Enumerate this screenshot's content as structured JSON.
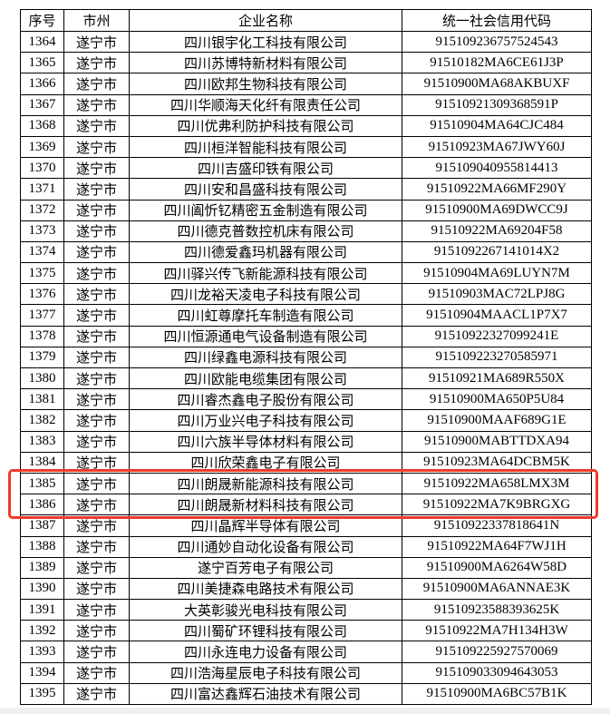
{
  "page": {
    "background_color": "#ffffff",
    "bottom_strip_color": "#eef0f1"
  },
  "highlight": {
    "color": "#f13a2b",
    "first_row_seq": "1385",
    "last_row_seq": "1386"
  },
  "table": {
    "headers": [
      "序号",
      "市州",
      "企业名称",
      "统一社会信用代码"
    ],
    "rows": [
      {
        "seq": "1364",
        "city": "遂宁市",
        "company": "四川银宇化工科技有限公司",
        "code": "915109236757524543",
        "highlight": false
      },
      {
        "seq": "1365",
        "city": "遂宁市",
        "company": "四川苏博特新材料有限公司",
        "code": "91510182MA6CE61J3P",
        "highlight": false
      },
      {
        "seq": "1366",
        "city": "遂宁市",
        "company": "四川欧邦生物科技有限公司",
        "code": "91510900MA68AKBUXF",
        "highlight": false
      },
      {
        "seq": "1367",
        "city": "遂宁市",
        "company": "四川华顺海天化纤有限责任公司",
        "code": "91510921309368591P",
        "highlight": false
      },
      {
        "seq": "1368",
        "city": "遂宁市",
        "company": "四川优弗利防护科技有限公司",
        "code": "91510904MA64CJC484",
        "highlight": false
      },
      {
        "seq": "1369",
        "city": "遂宁市",
        "company": "四川桓洋智能科技有限公司",
        "code": "91510923MA67JWY60J",
        "highlight": false
      },
      {
        "seq": "1370",
        "city": "遂宁市",
        "company": "四川吉盛印铁有限公司",
        "code": "915109040955814413",
        "highlight": false
      },
      {
        "seq": "1371",
        "city": "遂宁市",
        "company": "四川安和昌盛科技有限公司",
        "code": "91510922MA66MF290Y",
        "highlight": false
      },
      {
        "seq": "1372",
        "city": "遂宁市",
        "company": "四川阖忻钇精密五金制造有限公司",
        "code": "91510900MA69DWCC9J",
        "highlight": false
      },
      {
        "seq": "1373",
        "city": "遂宁市",
        "company": "四川德克普数控机床有限公司",
        "code": "91510922MA69204F58",
        "highlight": false
      },
      {
        "seq": "1374",
        "city": "遂宁市",
        "company": "四川德爱鑫玛机器有限公司",
        "code": "9151092267141014X2",
        "highlight": false
      },
      {
        "seq": "1375",
        "city": "遂宁市",
        "company": "四川驿兴传飞新能源科技有限公司",
        "code": "91510904MA69LUYN7M",
        "highlight": false
      },
      {
        "seq": "1376",
        "city": "遂宁市",
        "company": "四川龙裕天凌电子科技有限公司",
        "code": "91510903MAC72LPJ8G",
        "highlight": false
      },
      {
        "seq": "1377",
        "city": "遂宁市",
        "company": "四川虹尊摩托车制造有限公司",
        "code": "91510904MAACL1P7X7",
        "highlight": false
      },
      {
        "seq": "1378",
        "city": "遂宁市",
        "company": "四川恒源通电气设备制造有限公司",
        "code": "91510922327099241E",
        "highlight": false
      },
      {
        "seq": "1379",
        "city": "遂宁市",
        "company": "四川绿鑫电源科技有限公司",
        "code": "915109223270585971",
        "highlight": false
      },
      {
        "seq": "1380",
        "city": "遂宁市",
        "company": "四川欧能电缆集团有限公司",
        "code": "91510921MA689R550X",
        "highlight": false
      },
      {
        "seq": "1381",
        "city": "遂宁市",
        "company": "四川睿杰鑫电子股份有限公司",
        "code": "91510900MA650P5U84",
        "highlight": false
      },
      {
        "seq": "1382",
        "city": "遂宁市",
        "company": "四川万业兴电子科技有限公司",
        "code": "91510900MAAF689G1E",
        "highlight": false
      },
      {
        "seq": "1383",
        "city": "遂宁市",
        "company": "四川六族半导体材料有限公司",
        "code": "91510900MABTTDXA94",
        "highlight": false
      },
      {
        "seq": "1384",
        "city": "遂宁市",
        "company": "四川欣荣鑫电子有限公司",
        "code": "91510923MA64DCBM5K",
        "highlight": false
      },
      {
        "seq": "1385",
        "city": "遂宁市",
        "company": "四川朗晟新能源科技有限公司",
        "code": "91510922MA658LMX3M",
        "highlight": true
      },
      {
        "seq": "1386",
        "city": "遂宁市",
        "company": "四川朗晟新材料科技有限公司",
        "code": "91510922MA7K9BRGXG",
        "highlight": true
      },
      {
        "seq": "1387",
        "city": "遂宁市",
        "company": "四川晶辉半导体有限公司",
        "code": "91510922337818641N",
        "highlight": false
      },
      {
        "seq": "1388",
        "city": "遂宁市",
        "company": "四川通妙自动化设备有限公司",
        "code": "91510922MA64F7WJ1H",
        "highlight": false
      },
      {
        "seq": "1389",
        "city": "遂宁市",
        "company": "遂宁百芳电子有限公司",
        "code": "91510900MA6264W58D",
        "highlight": false
      },
      {
        "seq": "1390",
        "city": "遂宁市",
        "company": "四川美捷森电路技术有限公司",
        "code": "91510900MA6ANNAE3K",
        "highlight": false
      },
      {
        "seq": "1391",
        "city": "遂宁市",
        "company": "大英彰骏光电科技有限公司",
        "code": "91510923588393625K",
        "highlight": false
      },
      {
        "seq": "1392",
        "city": "遂宁市",
        "company": "四川蜀矿环锂科技有限公司",
        "code": "91510922MA7H134H3W",
        "highlight": false
      },
      {
        "seq": "1393",
        "city": "遂宁市",
        "company": "四川永连电力设备有限公司",
        "code": "915109225927570069",
        "highlight": false
      },
      {
        "seq": "1394",
        "city": "遂宁市",
        "company": "四川浩海星辰电子科技有限公司",
        "code": "915109033094643053",
        "highlight": false
      },
      {
        "seq": "1395",
        "city": "遂宁市",
        "company": "四川富达鑫辉石油技术有限公司",
        "code": "91510900MA6BC57B1K",
        "highlight": false
      }
    ]
  }
}
